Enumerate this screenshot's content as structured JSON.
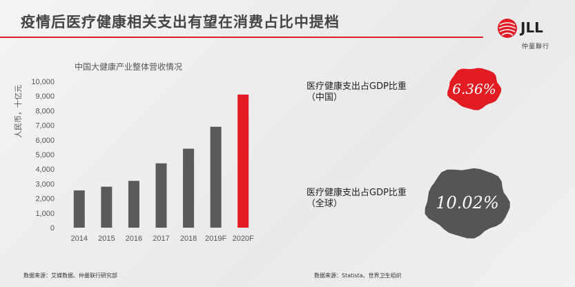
{
  "title": "疫情后医疗健康相关支出有望在消费占比中提档",
  "logo": {
    "text": "JLL",
    "sub": "仲量聯行"
  },
  "chart_data": {
    "type": "bar",
    "title": "中国大健康产业整体营收情况",
    "ylabel": "人民币，十亿元",
    "categories": [
      "2014",
      "2015",
      "2016",
      "2017",
      "2018",
      "2019F",
      "2020F"
    ],
    "values": [
      2550,
      2800,
      3200,
      4400,
      5400,
      6900,
      9100
    ],
    "ylim": [
      0,
      10000
    ],
    "yticks": [
      "0",
      "1,000",
      "2,000",
      "3,000",
      "4,000",
      "5,000",
      "6,000",
      "7,000",
      "8,000",
      "9,000",
      "10,000"
    ],
    "bar_color": "#5a5a5a",
    "highlight_color": "#e31b23",
    "highlight_index": 6
  },
  "stats": [
    {
      "label_line1": "医疗健康支出占GDP比重",
      "label_line2": "（中国）",
      "value": "6.36%",
      "color": "#e31b23"
    },
    {
      "label_line1": "医疗健康支出占GDP比重",
      "label_line2": "（全球）",
      "value": "10.02%",
      "color": "#555555"
    }
  ],
  "sources": {
    "left": "数据来源：艾媒数据、仲量联行研究部",
    "right": "数据来源：Statista、世界卫生组织"
  }
}
